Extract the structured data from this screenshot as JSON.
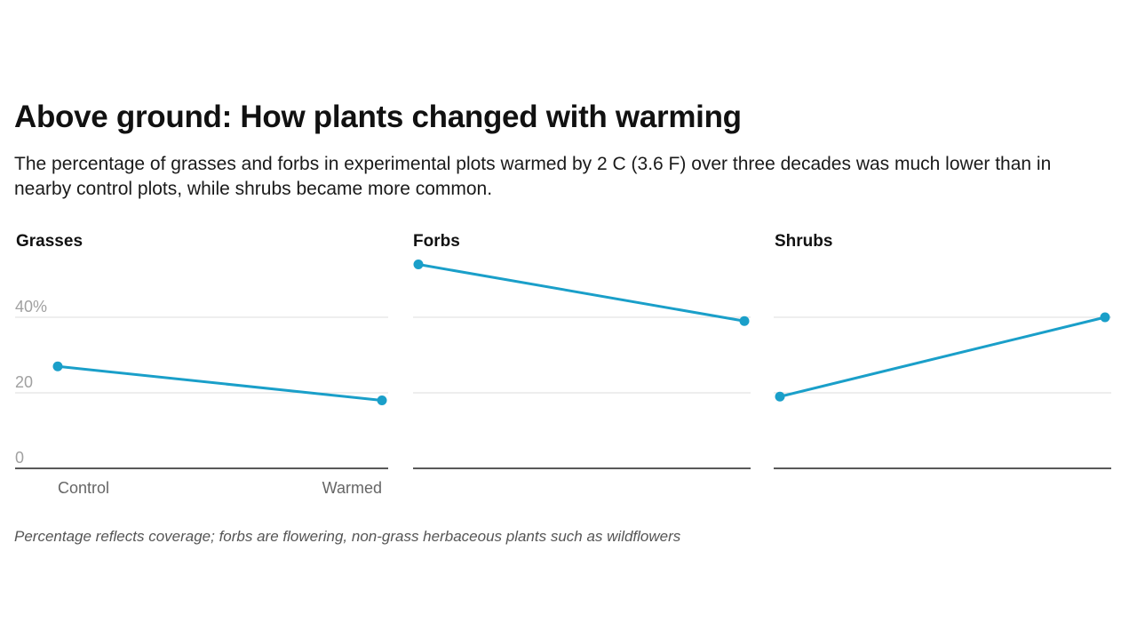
{
  "header": {
    "title": "Above ground: How plants changed with warming",
    "subtitle": "The percentage of grasses and forbs in experimental plots warmed by 2 C (3.6 F) over three decades was much lower than in nearby control plots, while shrubs became more common."
  },
  "footer": {
    "note": "Percentage reflects coverage; forbs are flowering, non-grass herbaceous plants such as wildflowers"
  },
  "chart_data": {
    "type": "line",
    "title": "Above ground: How plants changed with warming",
    "categories": [
      "Control",
      "Warmed"
    ],
    "ylim": [
      0,
      40
    ],
    "yticks": [
      {
        "value": 0,
        "label": "0"
      },
      {
        "value": 20,
        "label": "20"
      },
      {
        "value": 40,
        "label": "40%"
      }
    ],
    "grid": true,
    "line_color": "#1a9fc9",
    "panels": [
      {
        "name": "Grasses",
        "values": [
          27,
          18
        ]
      },
      {
        "name": "Forbs",
        "values": [
          54,
          39
        ]
      },
      {
        "name": "Shrubs",
        "values": [
          19,
          40
        ]
      }
    ]
  }
}
